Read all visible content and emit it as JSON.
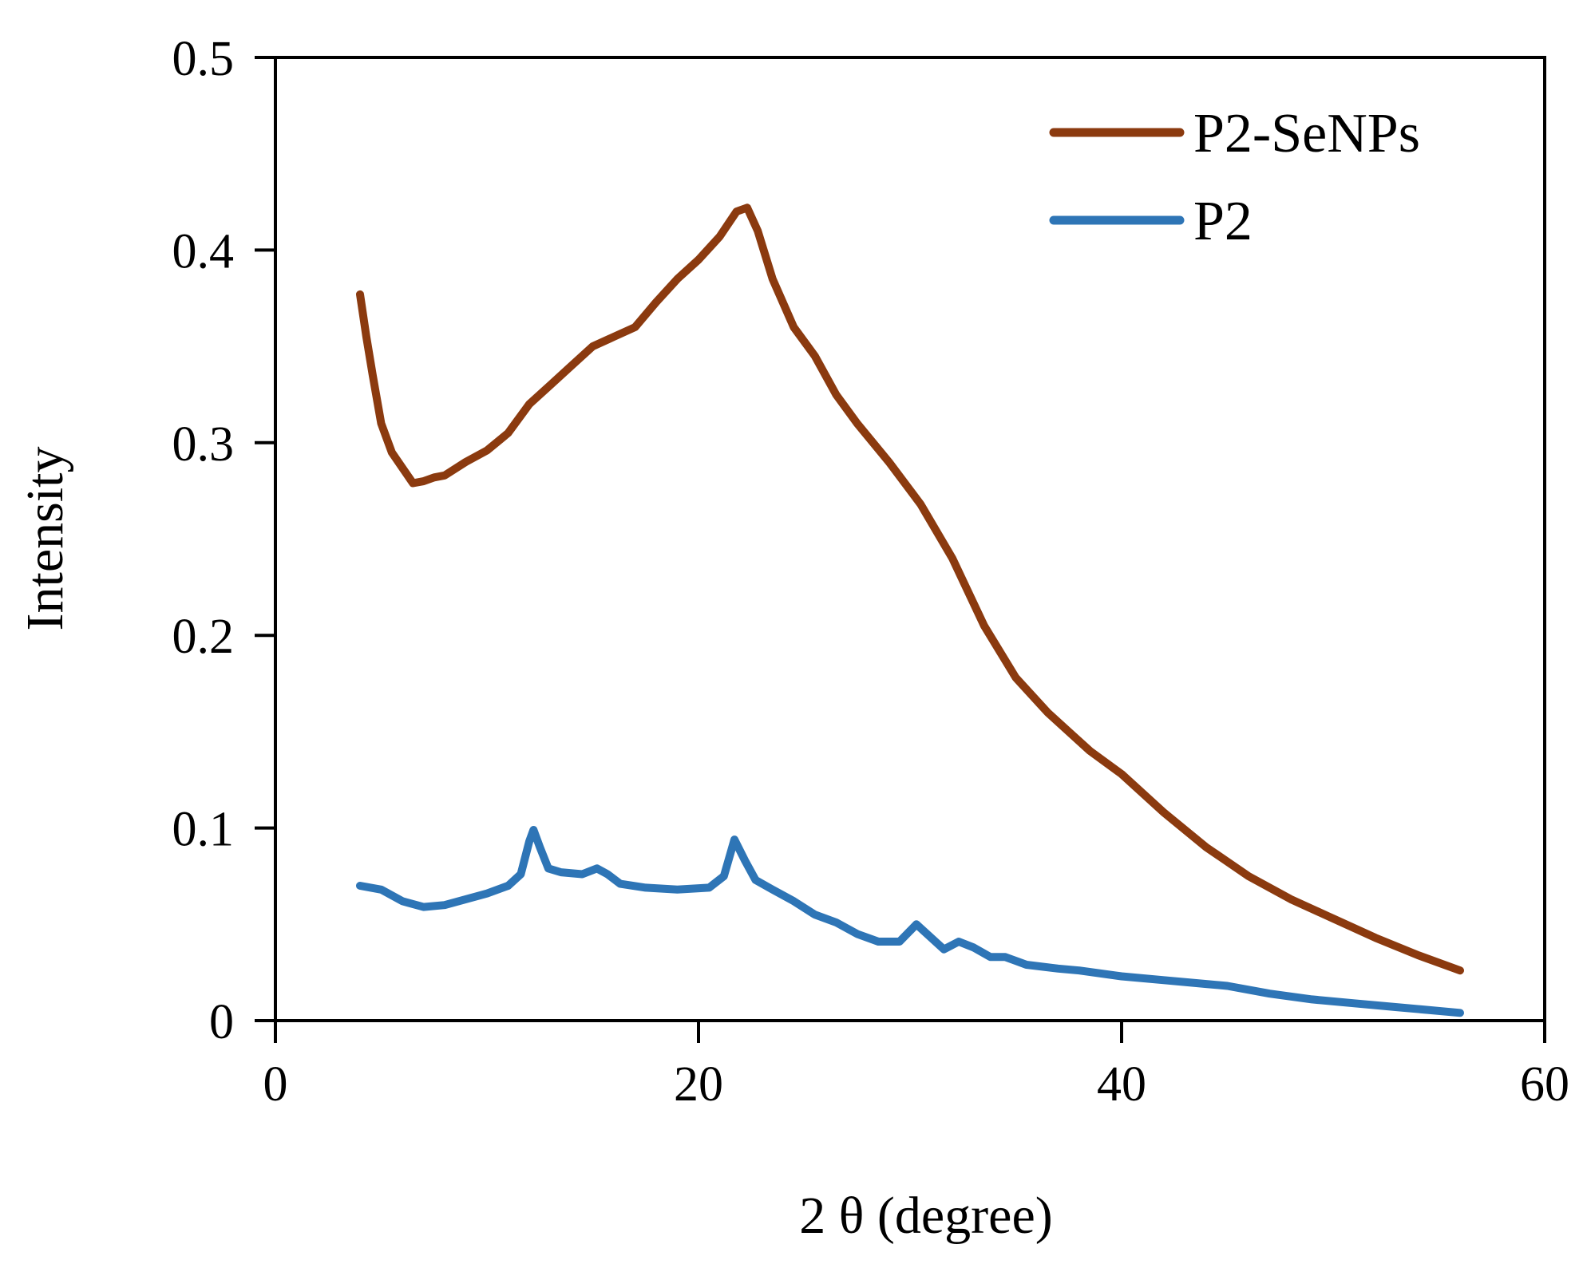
{
  "chart_data": {
    "type": "line",
    "title": "",
    "xlabel": "2 θ (degree)",
    "ylabel": "Intensity",
    "xlim": [
      0,
      60
    ],
    "ylim": [
      0,
      0.5
    ],
    "x_ticks": [
      "0",
      "20",
      "40",
      "60"
    ],
    "y_ticks": [
      "0",
      "0.1",
      "0.2",
      "0.3",
      "0.4",
      "0.5"
    ],
    "grid": false,
    "legend_position": "top-right",
    "series": [
      {
        "name": "P2-SeNPs",
        "color": "#8B3A0F",
        "points": [
          [
            4,
            0.377
          ],
          [
            4.3,
            0.355
          ],
          [
            4.6,
            0.335
          ],
          [
            5,
            0.31
          ],
          [
            5.5,
            0.295
          ],
          [
            6,
            0.287
          ],
          [
            6.5,
            0.279
          ],
          [
            7,
            0.28
          ],
          [
            7.5,
            0.282
          ],
          [
            8,
            0.283
          ],
          [
            9,
            0.29
          ],
          [
            10,
            0.296
          ],
          [
            11,
            0.305
          ],
          [
            12,
            0.32
          ],
          [
            13,
            0.33
          ],
          [
            14,
            0.34
          ],
          [
            15,
            0.35
          ],
          [
            16,
            0.355
          ],
          [
            17,
            0.36
          ],
          [
            18,
            0.373
          ],
          [
            19,
            0.385
          ],
          [
            20,
            0.395
          ],
          [
            21,
            0.407
          ],
          [
            21.8,
            0.42
          ],
          [
            22.3,
            0.422
          ],
          [
            22.8,
            0.41
          ],
          [
            23.5,
            0.385
          ],
          [
            24.5,
            0.36
          ],
          [
            25.5,
            0.345
          ],
          [
            26.5,
            0.325
          ],
          [
            27.5,
            0.31
          ],
          [
            29,
            0.29
          ],
          [
            30.5,
            0.268
          ],
          [
            32,
            0.24
          ],
          [
            33.5,
            0.205
          ],
          [
            35,
            0.178
          ],
          [
            36.5,
            0.16
          ],
          [
            37.5,
            0.15
          ],
          [
            38.5,
            0.14
          ],
          [
            40,
            0.128
          ],
          [
            42,
            0.108
          ],
          [
            44,
            0.09
          ],
          [
            46,
            0.075
          ],
          [
            48,
            0.063
          ],
          [
            50,
            0.053
          ],
          [
            52,
            0.043
          ],
          [
            54,
            0.034
          ],
          [
            56,
            0.026
          ]
        ]
      },
      {
        "name": "P2",
        "color": "#2E75B6",
        "points": [
          [
            4,
            0.07
          ],
          [
            5,
            0.068
          ],
          [
            6,
            0.062
          ],
          [
            7,
            0.059
          ],
          [
            8,
            0.06
          ],
          [
            9,
            0.063
          ],
          [
            10,
            0.066
          ],
          [
            11,
            0.07
          ],
          [
            11.6,
            0.076
          ],
          [
            12,
            0.093
          ],
          [
            12.2,
            0.099
          ],
          [
            12.5,
            0.09
          ],
          [
            12.9,
            0.079
          ],
          [
            13.5,
            0.077
          ],
          [
            14.5,
            0.076
          ],
          [
            15.2,
            0.079
          ],
          [
            15.7,
            0.076
          ],
          [
            16.3,
            0.071
          ],
          [
            17.5,
            0.069
          ],
          [
            19,
            0.068
          ],
          [
            20.5,
            0.069
          ],
          [
            21.2,
            0.075
          ],
          [
            21.7,
            0.094
          ],
          [
            22.2,
            0.083
          ],
          [
            22.7,
            0.073
          ],
          [
            23.5,
            0.068
          ],
          [
            24.5,
            0.062
          ],
          [
            25.5,
            0.055
          ],
          [
            26.5,
            0.051
          ],
          [
            27.5,
            0.045
          ],
          [
            28.5,
            0.041
          ],
          [
            29.5,
            0.041
          ],
          [
            30.3,
            0.05
          ],
          [
            31,
            0.043
          ],
          [
            31.6,
            0.037
          ],
          [
            32.3,
            0.041
          ],
          [
            33,
            0.038
          ],
          [
            33.8,
            0.033
          ],
          [
            34.5,
            0.033
          ],
          [
            35.5,
            0.029
          ],
          [
            37,
            0.027
          ],
          [
            38,
            0.026
          ],
          [
            40,
            0.023
          ],
          [
            42,
            0.021
          ],
          [
            44,
            0.019
          ],
          [
            45,
            0.018
          ],
          [
            47,
            0.014
          ],
          [
            49,
            0.011
          ],
          [
            51,
            0.009
          ],
          [
            53,
            0.007
          ],
          [
            56,
            0.004
          ]
        ]
      }
    ]
  }
}
